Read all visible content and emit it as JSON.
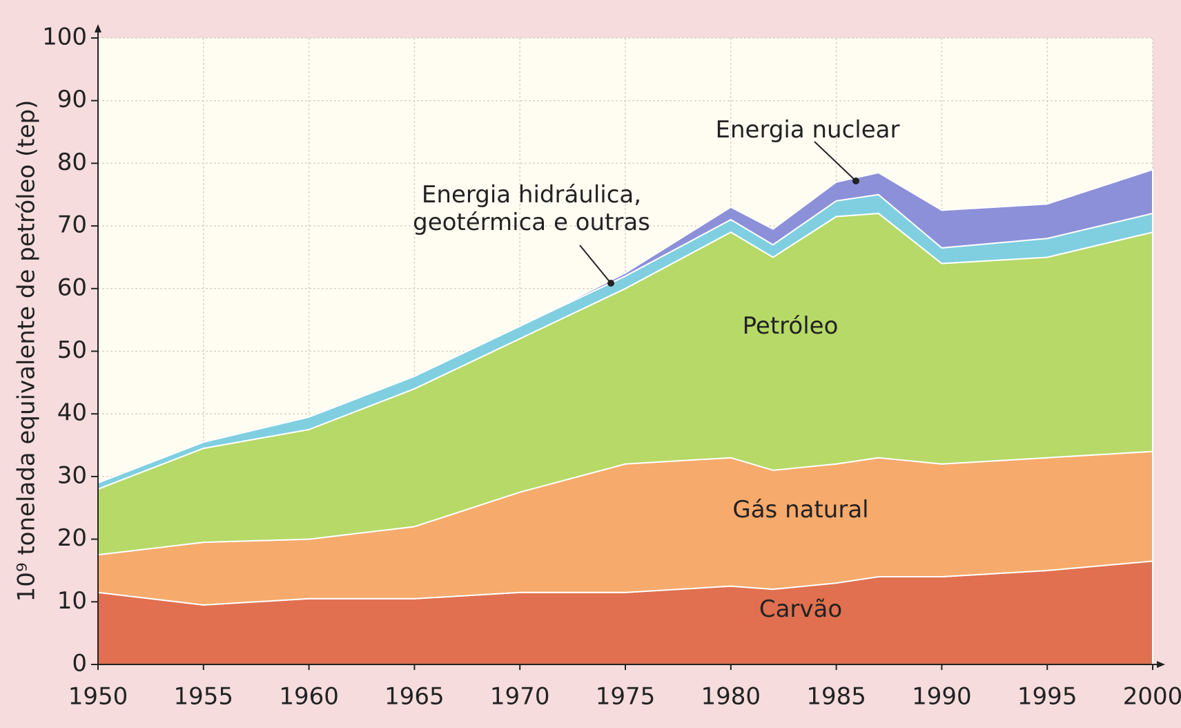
{
  "chart_data": {
    "type": "stacked_area",
    "y_label": "10⁹ tonelada equivalente de petróleo (tep)",
    "x": [
      1950,
      1955,
      1960,
      1965,
      1970,
      1975,
      1980,
      1982,
      1985,
      1987,
      1990,
      1995,
      2000
    ],
    "series": [
      {
        "name": "Carvão",
        "color": "#e0704f",
        "values": [
          11.5,
          9.5,
          10.5,
          10.5,
          11.5,
          11.5,
          12.5,
          12,
          13,
          14,
          14,
          15,
          16.5
        ]
      },
      {
        "name": "Gás natural",
        "color": "#f6aa6c",
        "values": [
          6,
          10,
          9.5,
          11.5,
          16,
          20.5,
          20.5,
          19,
          19,
          19,
          18,
          18,
          17.5
        ]
      },
      {
        "name": "Petróleo",
        "color": "#b6d967",
        "values": [
          10.5,
          15,
          17.5,
          22,
          24.5,
          28,
          36,
          34,
          39.5,
          39,
          32,
          32,
          35
        ]
      },
      {
        "name": "Energia hidráulica, geotérmica e outras",
        "color": "#7fcfe0",
        "values": [
          1,
          1,
          2,
          2,
          2,
          2,
          2,
          2,
          2.5,
          3,
          2.5,
          3,
          3
        ]
      },
      {
        "name": "Energia nuclear",
        "color": "#8c90d8",
        "values": [
          0,
          0,
          0,
          0,
          0,
          0.5,
          2,
          2.5,
          3,
          3.5,
          6,
          5.5,
          7
        ]
      }
    ],
    "xlim": [
      1950,
      2000
    ],
    "xticks": [
      1950,
      1955,
      1960,
      1965,
      1970,
      1975,
      1980,
      1985,
      1990,
      1995,
      2000
    ],
    "ylim": [
      0,
      100
    ],
    "yticks": [
      0,
      10,
      20,
      30,
      40,
      50,
      60,
      70,
      80,
      90,
      100
    ],
    "grid": true
  }
}
